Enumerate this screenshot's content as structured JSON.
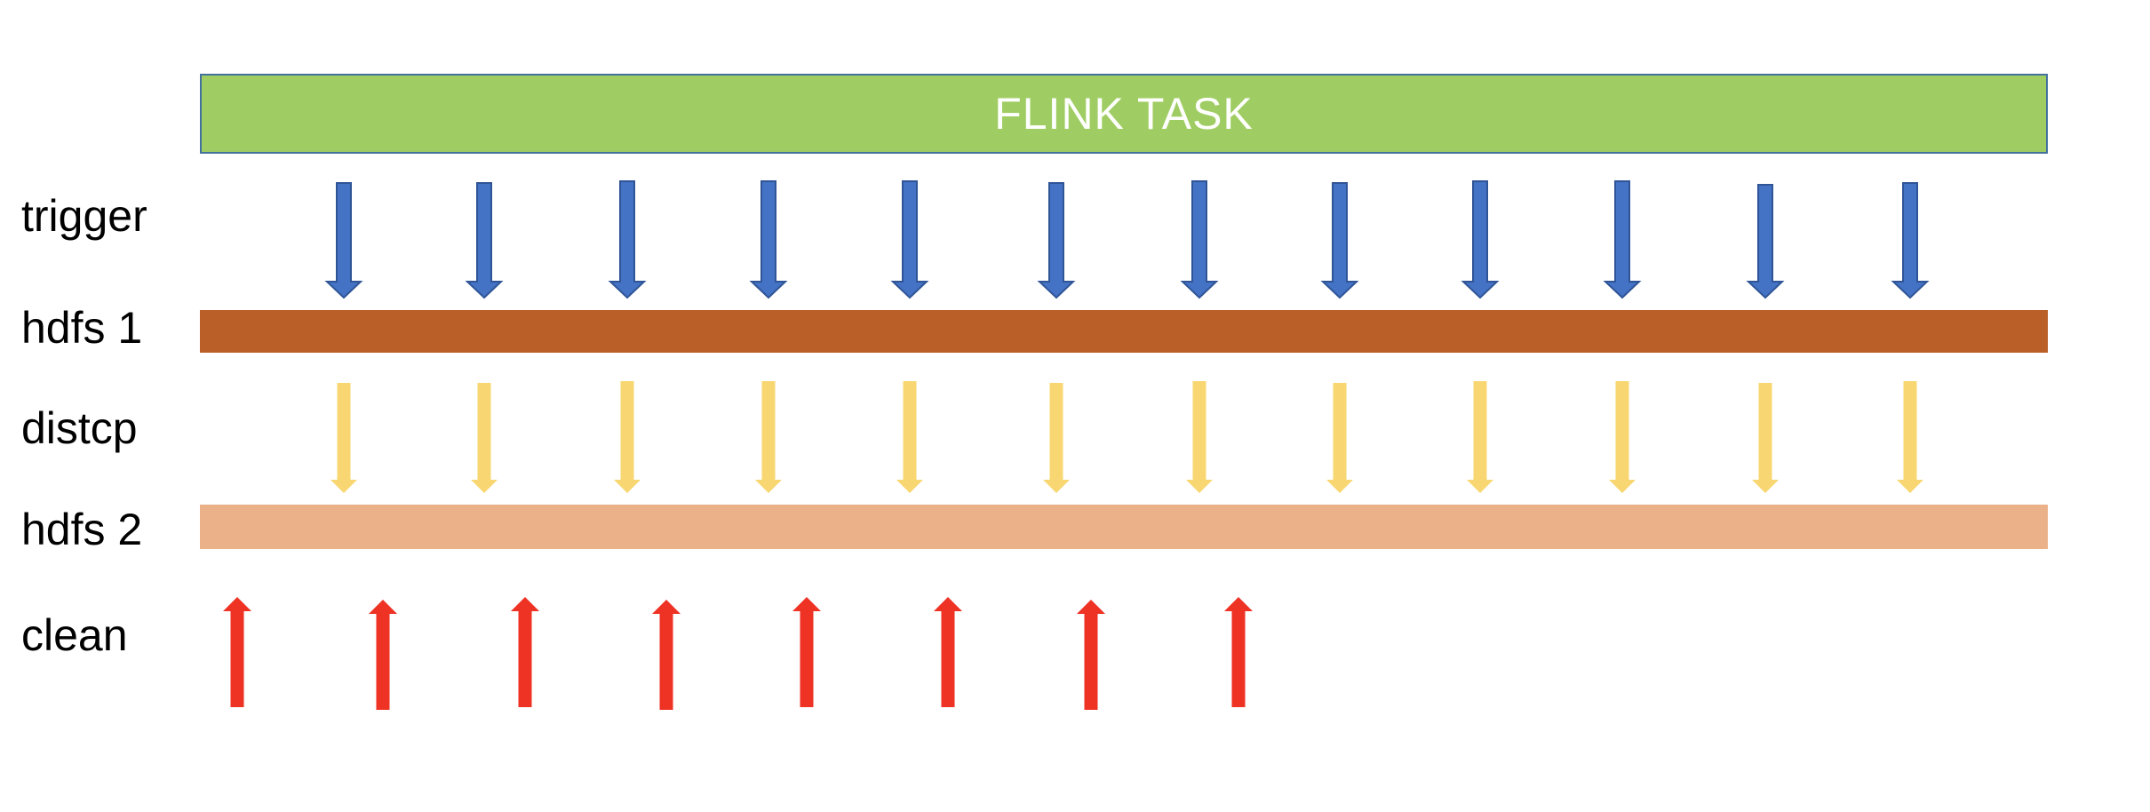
{
  "colors": {
    "flink_task": "#a0cd63",
    "hdfs1": "#b95f27",
    "hdfs2": "#ebb289",
    "trigger_arrow": "#4472c4",
    "trigger_arrow_border": "#2f5597",
    "distcp_arrow": "#f8d772",
    "clean_arrow": "#ee3224"
  },
  "flink_task": {
    "label": "FLINK TASK"
  },
  "rows": {
    "trigger": "trigger",
    "hdfs1": "hdfs 1",
    "distcp": "distcp",
    "hdfs2": "hdfs 2",
    "clean": "clean"
  },
  "arrows": {
    "trigger_count": 12,
    "distcp_count": 12,
    "clean_count": 8,
    "trigger_icon": "down-arrow-icon",
    "distcp_icon": "down-arrow-icon",
    "clean_icon": "up-arrow-icon"
  }
}
